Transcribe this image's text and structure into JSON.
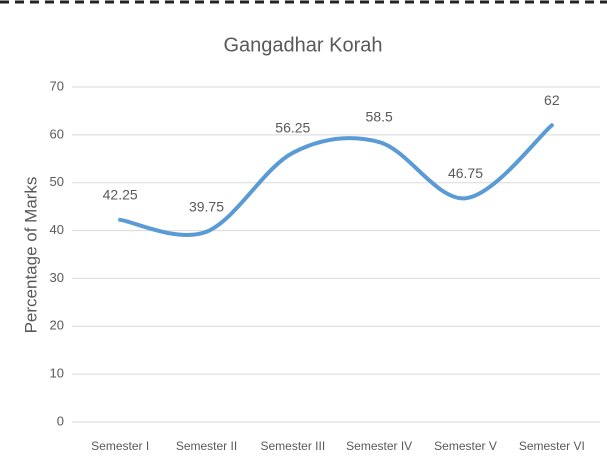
{
  "chart_data": {
    "type": "line",
    "title": "Gangadhar Korah",
    "y_label": "Percentage of Marks",
    "categories": [
      "Semester I",
      "Semester II",
      "Semester III",
      "Semester IV",
      "Semester V",
      "Semester VI"
    ],
    "values": [
      42.25,
      39.75,
      56.25,
      58.5,
      46.75,
      62
    ],
    "color": "#5b9bd5",
    "ylim": [
      0,
      70
    ],
    "yticks": [
      0,
      10,
      20,
      30,
      40,
      50,
      60,
      70
    ],
    "grid": true,
    "data_labels": true,
    "smooth": true
  }
}
